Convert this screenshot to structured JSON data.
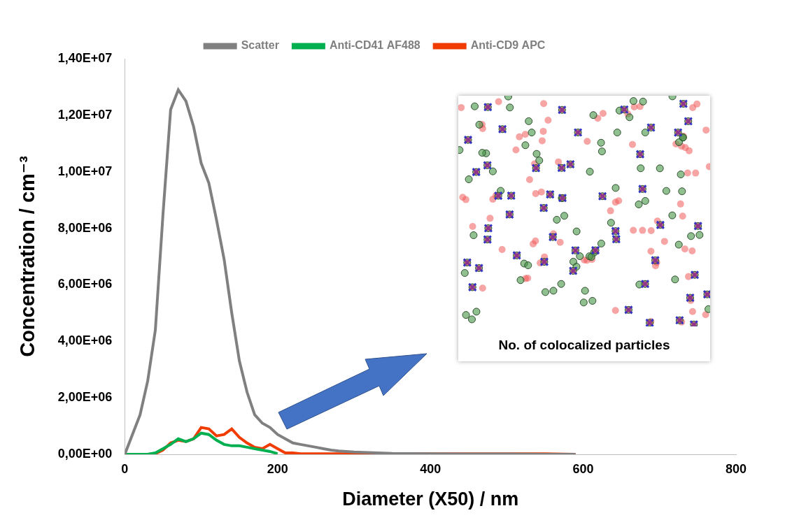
{
  "chart_data": {
    "type": "line",
    "x_label": "Diameter (X50) / nm",
    "y_label": "Concentration / cm⁻³",
    "annotation": "No. of colocalized particles",
    "x": [
      0,
      10,
      20,
      30,
      40,
      50,
      60,
      70,
      80,
      90,
      100,
      110,
      120,
      130,
      140,
      150,
      160,
      170,
      180,
      190,
      200,
      210,
      220,
      230,
      240,
      250,
      260,
      270,
      280,
      290,
      300,
      350,
      400,
      450,
      500,
      550,
      590
    ],
    "series": [
      {
        "name": "Scatter",
        "color": "#808080",
        "values": [
          0,
          700000,
          1400000,
          2600000,
          4400000,
          8500000,
          12200000,
          12900000,
          12500000,
          11600000,
          10300000,
          9600000,
          8300000,
          6900000,
          5000000,
          3300000,
          2200000,
          1400000,
          1100000,
          950000,
          700000,
          550000,
          400000,
          350000,
          300000,
          250000,
          200000,
          150000,
          120000,
          100000,
          80000,
          30000,
          20000,
          10000,
          10000,
          0,
          0
        ]
      },
      {
        "name": "Anti-CD41 AF488",
        "color": "#00b050",
        "values": [
          0,
          0,
          0,
          0,
          50000,
          200000,
          350000,
          550000,
          450000,
          550000,
          750000,
          700000,
          500000,
          350000,
          300000,
          300000,
          250000,
          200000,
          150000,
          100000,
          20000,
          null,
          null,
          null,
          null,
          null,
          null,
          null,
          null,
          null,
          null,
          null,
          null,
          null,
          null,
          null,
          null
        ]
      },
      {
        "name": "Anti-CD9 APC",
        "color": "#f03c00",
        "values": [
          0,
          0,
          0,
          0,
          20000,
          150000,
          400000,
          500000,
          450000,
          550000,
          950000,
          900000,
          650000,
          700000,
          900000,
          600000,
          400000,
          250000,
          200000,
          350000,
          200000,
          50000,
          50000,
          20000,
          20000,
          20000,
          20000,
          20000,
          20000,
          20000,
          20000,
          20000,
          20000,
          20000,
          20000,
          20000,
          0
        ]
      }
    ],
    "xlim": [
      0,
      800
    ],
    "xticks": [
      0,
      200,
      400,
      600,
      800
    ],
    "ylim": [
      0,
      14000000
    ],
    "yticks": [
      {
        "value": 0,
        "label": "0,00E+00"
      },
      {
        "value": 2000000,
        "label": "2,00E+06"
      },
      {
        "value": 4000000,
        "label": "4,00E+06"
      },
      {
        "value": 6000000,
        "label": "6,00E+06"
      },
      {
        "value": 8000000,
        "label": "8,00E+06"
      },
      {
        "value": 10000000,
        "label": "1,00E+07"
      },
      {
        "value": 12000000,
        "label": "1,20E+07"
      },
      {
        "value": 14000000,
        "label": "1,40E+07"
      }
    ],
    "legend": "top",
    "grid": false
  }
}
